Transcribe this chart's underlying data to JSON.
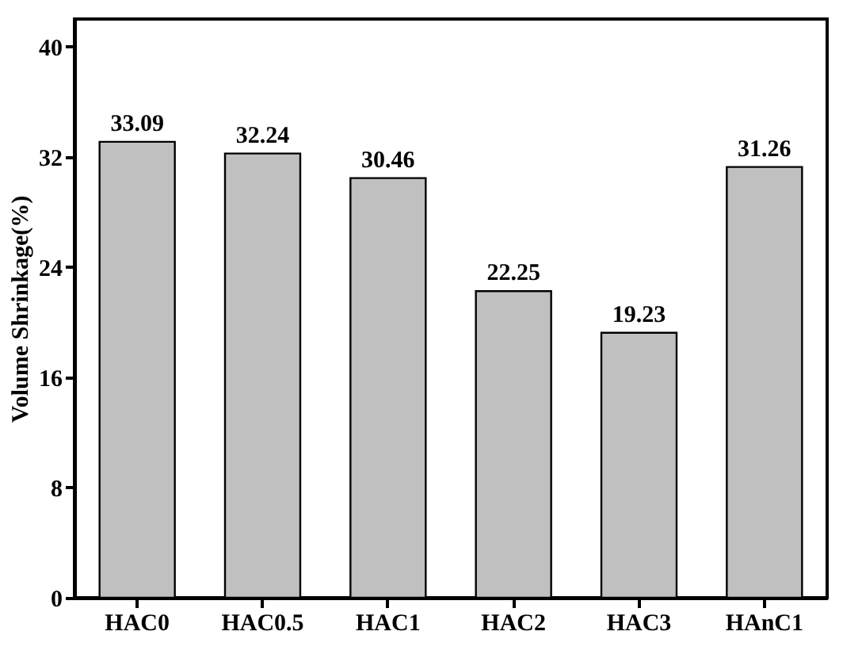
{
  "chart_data": {
    "type": "bar",
    "ylabel": "Volume Shrinkage(%)",
    "categories": [
      "HAC0",
      "HAC0.5",
      "HAC1",
      "HAC2",
      "HAC3",
      "HAnC1"
    ],
    "values": [
      33.09,
      32.24,
      30.46,
      22.25,
      19.23,
      31.26
    ],
    "color": "#c0c0c0",
    "ylim": [
      0,
      42
    ],
    "yticks": [
      0,
      8,
      16,
      24,
      32,
      40
    ],
    "data_labels": true
  }
}
